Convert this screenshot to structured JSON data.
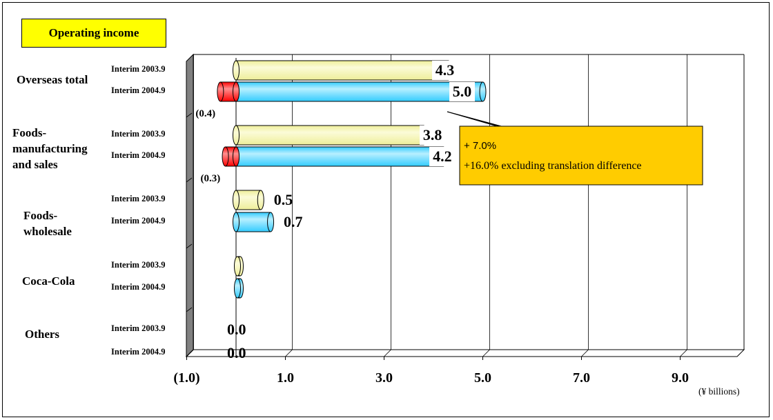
{
  "title": "Operating income",
  "unit": "(¥ billions)",
  "annotation": {
    "line1": "+ 7.0%",
    "line2": "+16.0% excluding translation difference",
    "colors": {
      "fill": "#ffcc00",
      "border": "#000000"
    }
  },
  "colors": {
    "interim_2003": "#eeee99",
    "interim_2004": "#33ccff",
    "negative": "#ff0000",
    "title_box": "#ffff00",
    "wall": "#808080"
  },
  "chart_data": {
    "type": "bar",
    "orientation": "horizontal",
    "title": "Operating income",
    "xlabel": "(¥ billions)",
    "xlim": [
      -1.0,
      10.0
    ],
    "x_ticks": [
      "(1.0)",
      "1.0",
      "3.0",
      "5.0",
      "7.0",
      "9.0"
    ],
    "grid": true,
    "categories": [
      {
        "segment": "Overseas total",
        "rows": [
          {
            "label": "Interim 2003.9",
            "period": "2003",
            "value": 4.3,
            "label_text": "4.3"
          },
          {
            "label": "Interim 2004.9",
            "period": "2004",
            "value": 5.0,
            "label_text": "5.0",
            "negative": -0.4,
            "negative_label": "(0.4)"
          }
        ]
      },
      {
        "segment": "Foods-manufacturing and sales",
        "rows": [
          {
            "label": "Interim 2003.9",
            "period": "2003",
            "value": 3.8,
            "label_text": "3.8"
          },
          {
            "label": "Interim 2004.9",
            "period": "2004",
            "value": 4.2,
            "label_text": "4.2",
            "negative": -0.3,
            "negative_label": "(0.3)"
          }
        ]
      },
      {
        "segment": "Foods-wholesale",
        "rows": [
          {
            "label": "Interim 2003.9",
            "period": "2003",
            "value": 0.5,
            "label_text": "0.5"
          },
          {
            "label": "Interim 2004.9",
            "period": "2004",
            "value": 0.7,
            "label_text": "0.7"
          }
        ]
      },
      {
        "segment": "Coca-Cola",
        "rows": [
          {
            "label": "Interim 2003.9",
            "period": "2003",
            "value": 0.0,
            "label_text": ""
          },
          {
            "label": "Interim 2004.9",
            "period": "2004",
            "value": 0.0,
            "label_text": ""
          }
        ]
      },
      {
        "segment": "Others",
        "rows": [
          {
            "label": "Interim 2003.9",
            "period": "2003",
            "value": 0.0,
            "label_text": "0.0"
          },
          {
            "label": "Interim 2004.9",
            "period": "2004",
            "value": 0.0,
            "label_text": "0.0"
          }
        ]
      }
    ]
  }
}
